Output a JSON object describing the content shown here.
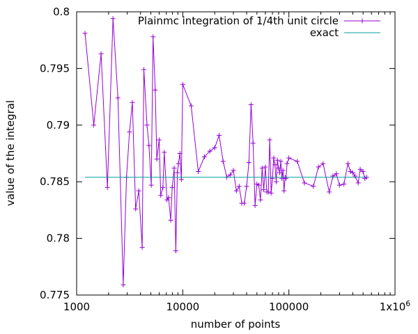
{
  "chart_data": {
    "type": "line",
    "title": "",
    "xlabel": "number of points",
    "ylabel": "value of the integral",
    "xscale": "log",
    "xlim": [
      1000,
      1000000
    ],
    "ylim": [
      0.775,
      0.8
    ],
    "xticks": [
      {
        "value": 1000,
        "label": "1000"
      },
      {
        "value": 10000,
        "label": "10000"
      },
      {
        "value": 100000,
        "label": "100000"
      },
      {
        "value": 1000000,
        "label": "1x10",
        "sup": "6"
      }
    ],
    "yticks": [
      {
        "value": 0.775,
        "label": "0.775"
      },
      {
        "value": 0.78,
        "label": "0.78"
      },
      {
        "value": 0.785,
        "label": "0.785"
      },
      {
        "value": 0.79,
        "label": "0.79"
      },
      {
        "value": 0.795,
        "label": "0.795"
      },
      {
        "value": 0.8,
        "label": "0.8"
      }
    ],
    "grid": false,
    "legend_position": "top-right",
    "series": [
      {
        "name": "Plainmc integration of 1/4th unit circle",
        "color": "#9400d3",
        "marker": "plus",
        "x": [
          1200,
          1450,
          1700,
          1950,
          2200,
          2450,
          2750,
          2950,
          3150,
          3350,
          3600,
          3850,
          4150,
          4300,
          4600,
          4800,
          5050,
          5250,
          5500,
          5700,
          6000,
          6200,
          6500,
          6700,
          7100,
          7350,
          7700,
          7950,
          8300,
          8600,
          8900,
          9100,
          9400,
          9700,
          10000,
          12000,
          14000,
          16000,
          18000,
          20000,
          22000,
          24000,
          26000,
          28000,
          30000,
          32000,
          34000,
          36000,
          38000,
          40000,
          42000,
          44000,
          46000,
          48000,
          50000,
          52000,
          54000,
          56000,
          58000,
          60000,
          62000,
          64000,
          66000,
          68000,
          70000,
          72000,
          74000,
          76000,
          78000,
          80000,
          82000,
          84000,
          86000,
          88000,
          90000,
          92000,
          94000,
          96000,
          100000,
          120000,
          140000,
          170000,
          190000,
          210000,
          240000,
          260000,
          280000,
          300000,
          330000,
          360000,
          380000,
          400000,
          420000,
          450000,
          470000,
          500000,
          520000,
          540000
        ],
        "y": [
          0.7981,
          0.79,
          0.7963,
          0.7845,
          0.7994,
          0.7924,
          0.7759,
          0.7854,
          0.7894,
          0.792,
          0.7826,
          0.7842,
          0.7792,
          0.7949,
          0.79,
          0.7882,
          0.7847,
          0.7978,
          0.7931,
          0.787,
          0.7887,
          0.7838,
          0.7845,
          0.7876,
          0.7834,
          0.7836,
          0.7816,
          0.7845,
          0.7862,
          0.7789,
          0.7858,
          0.7866,
          0.7875,
          0.7852,
          0.7936,
          0.7917,
          0.7859,
          0.7872,
          0.7877,
          0.788,
          0.7891,
          0.7868,
          0.7854,
          0.7856,
          0.786,
          0.7842,
          0.7846,
          0.7831,
          0.7831,
          0.7846,
          0.7867,
          0.7918,
          0.7884,
          0.7829,
          0.7848,
          0.7847,
          0.7834,
          0.7862,
          0.7843,
          0.7863,
          0.7841,
          0.7841,
          0.7887,
          0.784,
          0.7853,
          0.7871,
          0.7865,
          0.785,
          0.7869,
          0.7862,
          0.7858,
          0.7868,
          0.7853,
          0.786,
          0.7842,
          0.7854,
          0.7853,
          0.7866,
          0.7871,
          0.7868,
          0.7849,
          0.7846,
          0.7863,
          0.7866,
          0.7841,
          0.7855,
          0.7857,
          0.7847,
          0.7848,
          0.7866,
          0.7859,
          0.7858,
          0.7855,
          0.7849,
          0.7861,
          0.7859,
          0.7853,
          0.7854
        ]
      },
      {
        "name": "exact",
        "color": "#009e9e",
        "marker": "none",
        "x": [
          1200,
          540000
        ],
        "y": [
          0.785398,
          0.785398
        ]
      }
    ]
  }
}
